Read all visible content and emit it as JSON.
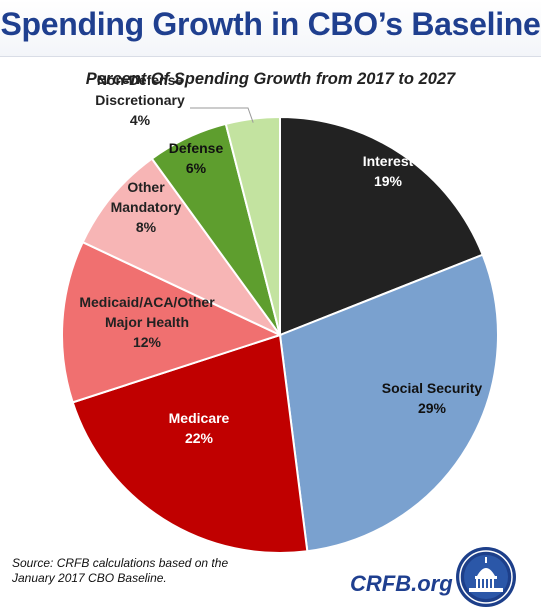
{
  "header": {
    "title": "Spending Growth in CBO’s Baseline"
  },
  "chart_data": {
    "type": "pie",
    "title": "Percent Of Spending Growth from 2017 to 2027",
    "slices": [
      {
        "label_lines": [
          "Interest"
        ],
        "value": 19,
        "value_label": "19%",
        "color": "#222222",
        "text_color": "#ffffff"
      },
      {
        "label_lines": [
          "Social Security"
        ],
        "value": 29,
        "value_label": "29%",
        "color": "#7aa1cf",
        "text_color": "#111111"
      },
      {
        "label_lines": [
          "Medicare"
        ],
        "value": 22,
        "value_label": "22%",
        "color": "#c00000",
        "text_color": "#ffffff"
      },
      {
        "label_lines": [
          "Medicaid/ACA/Other",
          "Major Health"
        ],
        "value": 12,
        "value_label": "12%",
        "color": "#f07070",
        "text_color": "#222222"
      },
      {
        "label_lines": [
          "Other",
          "Mandatory"
        ],
        "value": 8,
        "value_label": "8%",
        "color": "#f7b5b5",
        "text_color": "#222222"
      },
      {
        "label_lines": [
          "Defense"
        ],
        "value": 6,
        "value_label": "6%",
        "color": "#5e9e2e",
        "text_color": "#111111"
      },
      {
        "label_lines": [
          "Non-Defense",
          "Discretionary"
        ],
        "value": 4,
        "value_label": "4%",
        "color": "#c3e3a0",
        "text_color": "#222222"
      }
    ]
  },
  "footer": {
    "source_line1": "Source: CRFB calculations based on the",
    "source_line2": "January 2017 CBO Baseline.",
    "brand": "CRFB.org"
  },
  "colors": {
    "title": "#1f3f8f",
    "brand": "#1f3f8f",
    "seal": "#1d3f8a"
  },
  "icons": {
    "seal": "capitol-dome-seal-icon"
  }
}
